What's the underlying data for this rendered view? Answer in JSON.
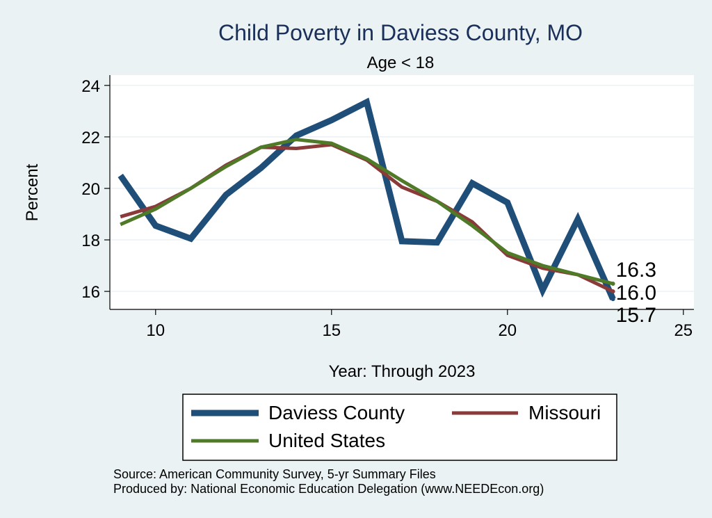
{
  "chart_data": {
    "type": "line",
    "title": "Child Poverty in Daviess County, MO",
    "subtitle": "Age < 18",
    "xlabel": "Year: Through 2023",
    "ylabel": "Percent",
    "xlim": [
      8.7,
      25.3
    ],
    "ylim": [
      15.3,
      24.4
    ],
    "xticks": [
      10,
      15,
      20,
      25
    ],
    "yticks": [
      16,
      18,
      20,
      22,
      24
    ],
    "grid": true,
    "series": [
      {
        "name": "Daviess County",
        "color": "#1f4e79",
        "x": [
          9,
          10,
          11,
          12,
          13,
          14,
          15,
          16,
          17,
          18,
          19,
          20,
          21,
          22,
          23
        ],
        "y": [
          20.5,
          18.55,
          18.05,
          19.75,
          20.8,
          22.05,
          22.65,
          23.35,
          17.95,
          17.9,
          20.2,
          19.45,
          16.05,
          18.8,
          15.7
        ],
        "end_label": "15.7"
      },
      {
        "name": "Missouri",
        "color": "#8b3a3a",
        "x": [
          9,
          10,
          11,
          12,
          13,
          14,
          15,
          16,
          17,
          18,
          19,
          20,
          21,
          22,
          23
        ],
        "y": [
          18.9,
          19.3,
          20.0,
          20.9,
          21.6,
          21.55,
          21.7,
          21.1,
          20.05,
          19.5,
          18.7,
          17.4,
          16.9,
          16.65,
          16.0
        ],
        "end_label": "16.0"
      },
      {
        "name": "United States",
        "color": "#4f7a28",
        "x": [
          9,
          10,
          11,
          12,
          13,
          14,
          15,
          16,
          17,
          18,
          19,
          20,
          21,
          22,
          23
        ],
        "y": [
          18.6,
          19.2,
          20.0,
          20.85,
          21.6,
          21.9,
          21.75,
          21.15,
          20.3,
          19.5,
          18.55,
          17.5,
          17.0,
          16.65,
          16.3
        ],
        "end_label": "16.3"
      }
    ],
    "legend": {
      "placement": "bottom",
      "entries": [
        "Daviess County",
        "Missouri",
        "United States"
      ]
    },
    "notes": [
      "Source: American Community Survey, 5-yr Summary Files",
      "Produced by: National Economic Education Delegation (www.NEEDEcon.org)"
    ]
  }
}
